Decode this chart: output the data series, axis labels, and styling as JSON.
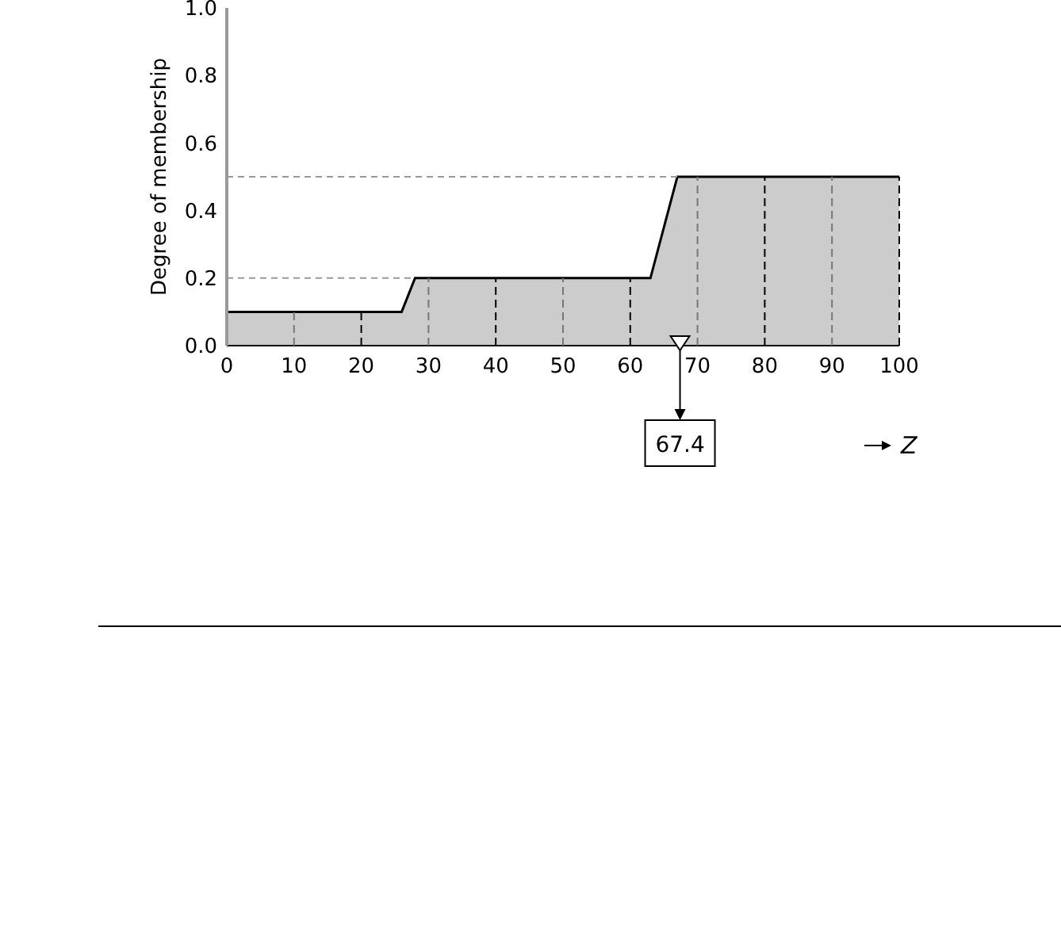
{
  "chart_data": {
    "type": "area",
    "xlabel": "Z",
    "ylabel": "Degree of membership",
    "x": [
      0,
      26,
      28,
      63,
      67,
      100
    ],
    "values": [
      0.1,
      0.1,
      0.2,
      0.2,
      0.5,
      0.5
    ],
    "color": "#cccccc",
    "xlim": [
      0,
      100
    ],
    "ylim": [
      0,
      1
    ],
    "xticks": [
      0,
      10,
      20,
      30,
      40,
      50,
      60,
      70,
      80,
      90,
      100
    ],
    "yticks": [
      {
        "value": 0,
        "label": "0.0"
      },
      {
        "value": 0.2,
        "label": "0.2"
      },
      {
        "value": 0.4,
        "label": "0.4"
      },
      {
        "value": 0.6,
        "label": "0.6"
      },
      {
        "value": 0.8,
        "label": "0.8"
      },
      {
        "value": 1,
        "label": "1.0"
      }
    ],
    "ref_lines": [
      {
        "axis": "y",
        "value": 0.2,
        "color": "#999999",
        "line_style": "dashed"
      },
      {
        "axis": "y",
        "value": 0.5,
        "color": "#999999",
        "line_style": "dashed"
      }
    ],
    "annotations": [
      {
        "text": "67.4",
        "x": 67.4,
        "y": 0
      }
    ]
  }
}
